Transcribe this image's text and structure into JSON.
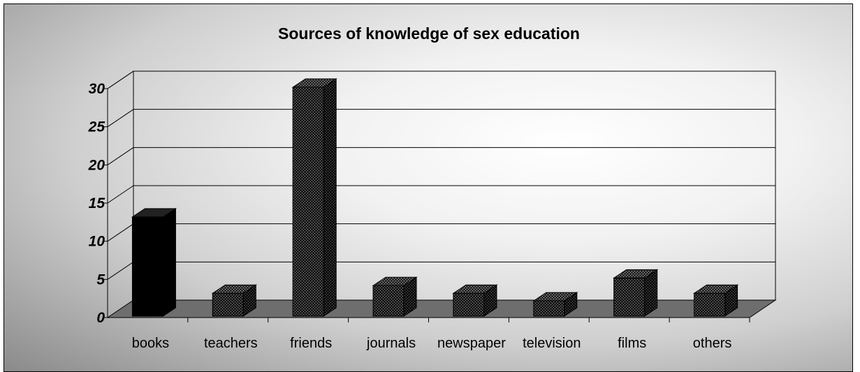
{
  "chart_data": {
    "type": "bar",
    "title": "Sources of knowledge of sex education",
    "categories": [
      "books",
      "teachers",
      "friends",
      "journals",
      "newspaper",
      "television",
      "films",
      "others"
    ],
    "values": [
      13,
      3,
      30,
      4,
      3,
      2,
      5,
      3
    ],
    "xlabel": "",
    "ylabel": "",
    "ylim": [
      0,
      30
    ],
    "yticks": [
      0,
      5,
      10,
      15,
      20,
      25,
      30
    ],
    "grid": true,
    "style": "3d-column",
    "colors": {
      "highlight_bar": "#000000",
      "bar_pattern_dark": "#1a1a1a",
      "bar_pattern_light": "#9a9a9a",
      "floor": "#6e6e6e",
      "grid": "#000000"
    }
  }
}
